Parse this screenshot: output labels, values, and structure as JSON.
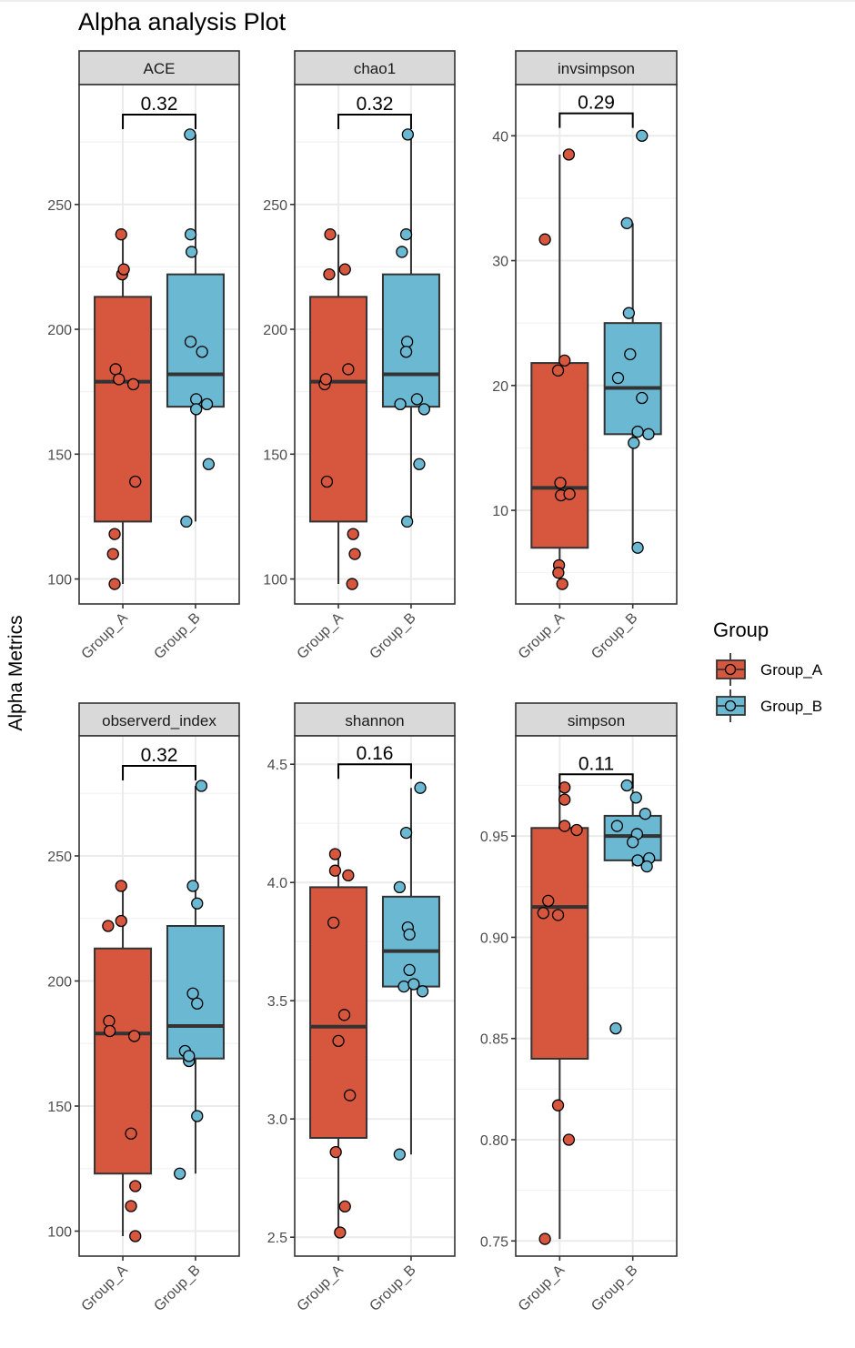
{
  "chart_data": {
    "type": "box",
    "title": "Alpha analysis Plot",
    "ylabel": "Alpha Metrics",
    "xlabel": "",
    "categories": [
      "Group_A",
      "Group_B"
    ],
    "legend": {
      "title": "Group",
      "position": "right",
      "entries": [
        {
          "label": "Group_A",
          "color": "#D6573D"
        },
        {
          "label": "Group_B",
          "color": "#6BB8D3"
        }
      ]
    },
    "grid": true,
    "panels": [
      {
        "name": "ACE",
        "ylim": [
          90,
          298
        ],
        "yticks": [
          100,
          150,
          200,
          250
        ],
        "tick_labels": [
          "100",
          "150",
          "200",
          "250"
        ],
        "pvalue": "0.32",
        "bracket_y": 286,
        "groups": [
          {
            "name": "Group_A",
            "box": {
              "lower_whisker": 98,
              "q1": 123,
              "median": 179,
              "q3": 213,
              "upper_whisker": 238
            },
            "points": [
              [
                -0.05,
                238
              ],
              [
                -0.02,
                222
              ],
              [
                0.03,
                224
              ],
              [
                -0.22,
                184
              ],
              [
                -0.12,
                180
              ],
              [
                0.32,
                178
              ],
              [
                0.38,
                139
              ],
              [
                -0.25,
                118
              ],
              [
                -0.3,
                110
              ],
              [
                -0.25,
                98
              ]
            ]
          },
          {
            "name": "Group_B",
            "box": {
              "lower_whisker": 123,
              "q1": 169,
              "median": 182,
              "q3": 222,
              "upper_whisker": 278
            },
            "points": [
              [
                -0.17,
                278
              ],
              [
                -0.15,
                238
              ],
              [
                -0.12,
                231
              ],
              [
                -0.15,
                195
              ],
              [
                0.2,
                191
              ],
              [
                0.02,
                172
              ],
              [
                0.02,
                168
              ],
              [
                0.35,
                170
              ],
              [
                0.4,
                146
              ],
              [
                -0.28,
                123
              ]
            ]
          }
        ]
      },
      {
        "name": "chao1",
        "ylim": [
          90,
          298
        ],
        "yticks": [
          100,
          150,
          200,
          250
        ],
        "tick_labels": [
          "100",
          "150",
          "200",
          "250"
        ],
        "pvalue": "0.32",
        "bracket_y": 286,
        "groups": [
          {
            "name": "Group_A",
            "box": {
              "lower_whisker": 98,
              "q1": 123,
              "median": 179,
              "q3": 213,
              "upper_whisker": 238
            },
            "points": [
              [
                -0.42,
                178
              ],
              [
                -0.38,
                180
              ],
              [
                -0.25,
                238
              ],
              [
                -0.28,
                222
              ],
              [
                0.2,
                224
              ],
              [
                0.3,
                184
              ],
              [
                -0.35,
                139
              ],
              [
                0.45,
                118
              ],
              [
                0.5,
                110
              ],
              [
                0.42,
                98
              ]
            ]
          },
          {
            "name": "Group_B",
            "box": {
              "lower_whisker": 123,
              "q1": 169,
              "median": 182,
              "q3": 222,
              "upper_whisker": 278
            },
            "points": [
              [
                -0.1,
                278
              ],
              [
                -0.15,
                238
              ],
              [
                -0.28,
                231
              ],
              [
                -0.12,
                195
              ],
              [
                -0.15,
                191
              ],
              [
                0.18,
                172
              ],
              [
                -0.33,
                170
              ],
              [
                0.4,
                168
              ],
              [
                0.25,
                146
              ],
              [
                -0.12,
                123
              ]
            ]
          }
        ]
      },
      {
        "name": "invsimpson",
        "ylim": [
          2.5,
          44.1
        ],
        "yticks": [
          10,
          20,
          30,
          40
        ],
        "tick_labels": [
          "10",
          "20",
          "30",
          "40"
        ],
        "pvalue": "0.29",
        "bracket_y": 41.8,
        "groups": [
          {
            "name": "Group_A",
            "box": {
              "lower_whisker": 4.1,
              "q1": 7.0,
              "median": 11.8,
              "q3": 21.8,
              "upper_whisker": 38.5
            },
            "points": [
              [
                0.28,
                38.5
              ],
              [
                -0.45,
                31.7
              ],
              [
                0.15,
                22.0
              ],
              [
                -0.05,
                21.2
              ],
              [
                0.02,
                12.2
              ],
              [
                0.04,
                11.2
              ],
              [
                0.3,
                11.3
              ],
              [
                -0.02,
                5.6
              ],
              [
                -0.04,
                5.0
              ],
              [
                0.08,
                4.1
              ]
            ]
          },
          {
            "name": "Group_B",
            "box": {
              "lower_whisker": 7.0,
              "q1": 16.1,
              "median": 19.8,
              "q3": 25.0,
              "upper_whisker": 33.0
            },
            "points": [
              [
                0.28,
                40.0
              ],
              [
                -0.18,
                33.0
              ],
              [
                -0.12,
                25.8
              ],
              [
                -0.08,
                22.5
              ],
              [
                -0.45,
                20.6
              ],
              [
                0.28,
                19.0
              ],
              [
                0.15,
                16.3
              ],
              [
                0.48,
                16.1
              ],
              [
                0.03,
                15.4
              ],
              [
                0.15,
                7.0
              ]
            ]
          }
        ]
      },
      {
        "name": "observerd_index",
        "ylim": [
          90,
          298
        ],
        "yticks": [
          100,
          150,
          200,
          250
        ],
        "tick_labels": [
          "100",
          "150",
          "200",
          "250"
        ],
        "pvalue": "0.32",
        "bracket_y": 286,
        "groups": [
          {
            "name": "Group_A",
            "box": {
              "lower_whisker": 98,
              "q1": 123,
              "median": 179,
              "q3": 213,
              "upper_whisker": 238
            },
            "points": [
              [
                -0.05,
                238
              ],
              [
                -0.05,
                224
              ],
              [
                -0.45,
                222
              ],
              [
                -0.42,
                184
              ],
              [
                -0.4,
                180
              ],
              [
                0.35,
                178
              ],
              [
                0.25,
                139
              ],
              [
                0.38,
                118
              ],
              [
                0.25,
                110
              ],
              [
                0.38,
                98
              ]
            ]
          },
          {
            "name": "Group_B",
            "box": {
              "lower_whisker": 123,
              "q1": 169,
              "median": 182,
              "q3": 222,
              "upper_whisker": 278
            },
            "points": [
              [
                0.18,
                278
              ],
              [
                -0.08,
                238
              ],
              [
                0.05,
                231
              ],
              [
                -0.08,
                195
              ],
              [
                0.05,
                191
              ],
              [
                -0.32,
                172
              ],
              [
                -0.2,
                168
              ],
              [
                -0.2,
                170
              ],
              [
                0.05,
                146
              ],
              [
                -0.48,
                123
              ]
            ]
          }
        ]
      },
      {
        "name": "shannon",
        "ylim": [
          2.42,
          4.62
        ],
        "yticks": [
          2.5,
          3.0,
          3.5,
          4.0,
          4.5
        ],
        "tick_labels": [
          "2.5",
          "3.0",
          "3.5",
          "4.0",
          "4.5"
        ],
        "pvalue": "0.16",
        "bracket_y": 4.5,
        "groups": [
          {
            "name": "Group_A",
            "box": {
              "lower_whisker": 2.52,
              "q1": 2.92,
              "median": 3.39,
              "q3": 3.98,
              "upper_whisker": 4.12
            },
            "points": [
              [
                -0.1,
                4.12
              ],
              [
                -0.1,
                4.05
              ],
              [
                0.3,
                4.03
              ],
              [
                -0.15,
                3.83
              ],
              [
                0.18,
                3.44
              ],
              [
                0.0,
                3.33
              ],
              [
                0.35,
                3.1
              ],
              [
                -0.08,
                2.86
              ],
              [
                0.2,
                2.63
              ],
              [
                0.05,
                2.52
              ]
            ]
          },
          {
            "name": "Group_B",
            "box": {
              "lower_whisker": 2.85,
              "q1": 3.56,
              "median": 3.71,
              "q3": 3.94,
              "upper_whisker": 4.4
            },
            "points": [
              [
                0.28,
                4.4
              ],
              [
                -0.15,
                4.21
              ],
              [
                -0.35,
                3.98
              ],
              [
                -0.1,
                3.81
              ],
              [
                -0.05,
                3.78
              ],
              [
                -0.05,
                3.63
              ],
              [
                -0.22,
                3.56
              ],
              [
                0.08,
                3.57
              ],
              [
                0.35,
                3.54
              ],
              [
                -0.35,
                2.85
              ]
            ]
          }
        ]
      },
      {
        "name": "simpson",
        "ylim": [
          0.7425,
          0.9995
        ],
        "yticks": [
          0.75,
          0.8,
          0.85,
          0.9,
          0.95
        ],
        "tick_labels": [
          "0.75",
          "0.80",
          "0.85",
          "0.90",
          "0.95"
        ],
        "pvalue": "0.11",
        "bracket_y": 0.9805,
        "groups": [
          {
            "name": "Group_A",
            "box": {
              "lower_whisker": 0.751,
              "q1": 0.84,
              "median": 0.915,
              "q3": 0.954,
              "upper_whisker": 0.973
            },
            "points": [
              [
                0.15,
                0.974
              ],
              [
                0.15,
                0.968
              ],
              [
                0.15,
                0.955
              ],
              [
                0.52,
                0.953
              ],
              [
                -0.35,
                0.918
              ],
              [
                -0.5,
                0.912
              ],
              [
                -0.05,
                0.911
              ],
              [
                -0.05,
                0.817
              ],
              [
                0.28,
                0.8
              ],
              [
                -0.45,
                0.751
              ]
            ]
          },
          {
            "name": "Group_B",
            "box": {
              "lower_whisker": 0.935,
              "q1": 0.938,
              "median": 0.95,
              "q3": 0.96,
              "upper_whisker": 0.973
            },
            "points": [
              [
                -0.18,
                0.975
              ],
              [
                0.1,
                0.969
              ],
              [
                0.38,
                0.961
              ],
              [
                -0.48,
                0.955
              ],
              [
                0.13,
                0.951
              ],
              [
                0.0,
                0.947
              ],
              [
                0.15,
                0.938
              ],
              [
                0.5,
                0.939
              ],
              [
                0.43,
                0.935
              ],
              [
                -0.52,
                0.855
              ]
            ]
          }
        ]
      }
    ]
  }
}
